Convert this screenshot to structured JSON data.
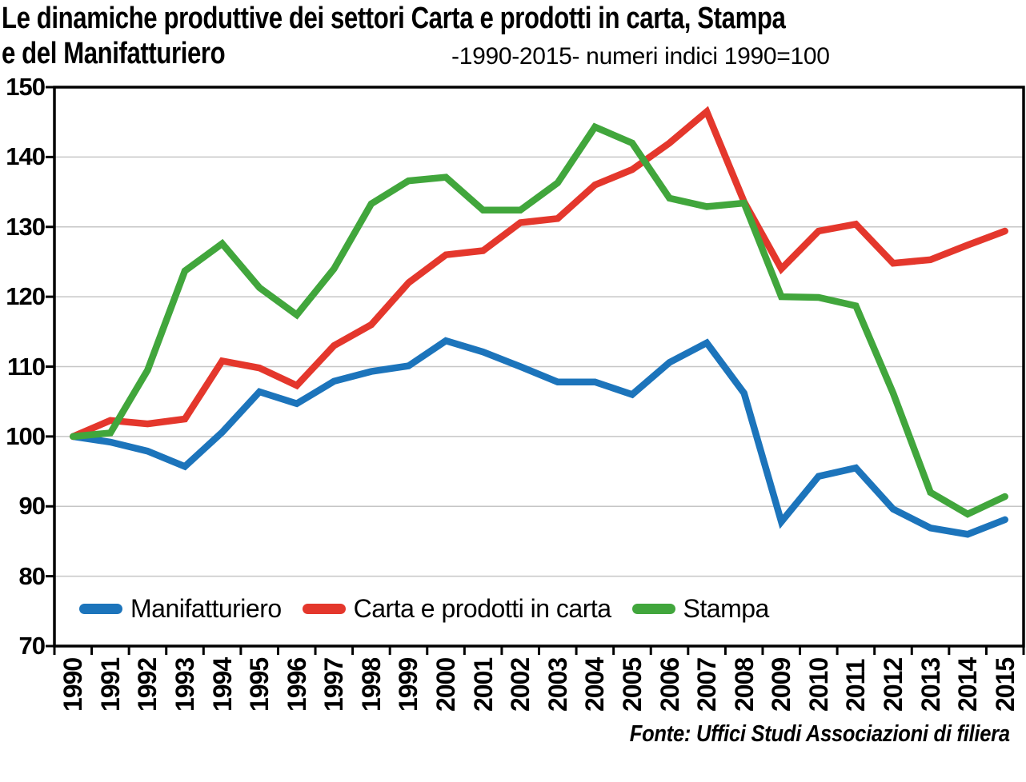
{
  "title": {
    "line1": "Le dinamiche produttive dei settori Carta e prodotti in carta, Stampa",
    "line2": "e del Manifatturiero",
    "subtitle": "-1990-2015- numeri indici 1990=100"
  },
  "source_note": "Fonte: Uffici Studi Associazioni di filiera",
  "chart_data": {
    "type": "line",
    "x": [
      1990,
      1991,
      1992,
      1993,
      1994,
      1995,
      1996,
      1997,
      1998,
      1999,
      2000,
      2001,
      2002,
      2003,
      2004,
      2005,
      2006,
      2007,
      2008,
      2009,
      2010,
      2011,
      2012,
      2013,
      2014,
      2015
    ],
    "series": [
      {
        "name": "Manifatturiero",
        "color": "#1C74BB",
        "values": [
          100,
          99.2,
          97.9,
          95.7,
          100.6,
          106.4,
          104.7,
          107.9,
          109.3,
          110.1,
          113.7,
          112.1,
          110.0,
          107.8,
          107.8,
          106.0,
          110.6,
          113.4,
          106.2,
          87.8,
          94.3,
          95.5,
          89.6,
          86.9,
          86.0,
          88.1
        ]
      },
      {
        "name": "Carta e prodotti in carta",
        "color": "#E4372C",
        "values": [
          100,
          102.3,
          101.8,
          102.5,
          110.8,
          109.8,
          107.3,
          113.0,
          116.0,
          122.0,
          126.0,
          126.6,
          130.6,
          131.2,
          136.0,
          138.2,
          142.0,
          146.5,
          133.6,
          124.0,
          129.4,
          130.4,
          124.8,
          125.3,
          127.4,
          129.4
        ]
      },
      {
        "name": "Stampa",
        "color": "#41A63C",
        "values": [
          100,
          100.5,
          109.5,
          123.7,
          127.6,
          121.3,
          117.4,
          124.0,
          133.3,
          136.6,
          137.1,
          132.4,
          132.4,
          136.3,
          144.3,
          142.0,
          134.1,
          132.9,
          133.4,
          120.0,
          119.9,
          118.7,
          106.2,
          92.0,
          88.9,
          91.4
        ]
      }
    ],
    "ylim": [
      70,
      150
    ],
    "yticks": [
      70,
      80,
      90,
      100,
      110,
      120,
      130,
      140,
      150
    ],
    "grid": true,
    "grid_color": "#C6C6C6",
    "axis_color": "#000000",
    "legend_position": "bottom-inside",
    "index_base_note": "1990=100"
  }
}
